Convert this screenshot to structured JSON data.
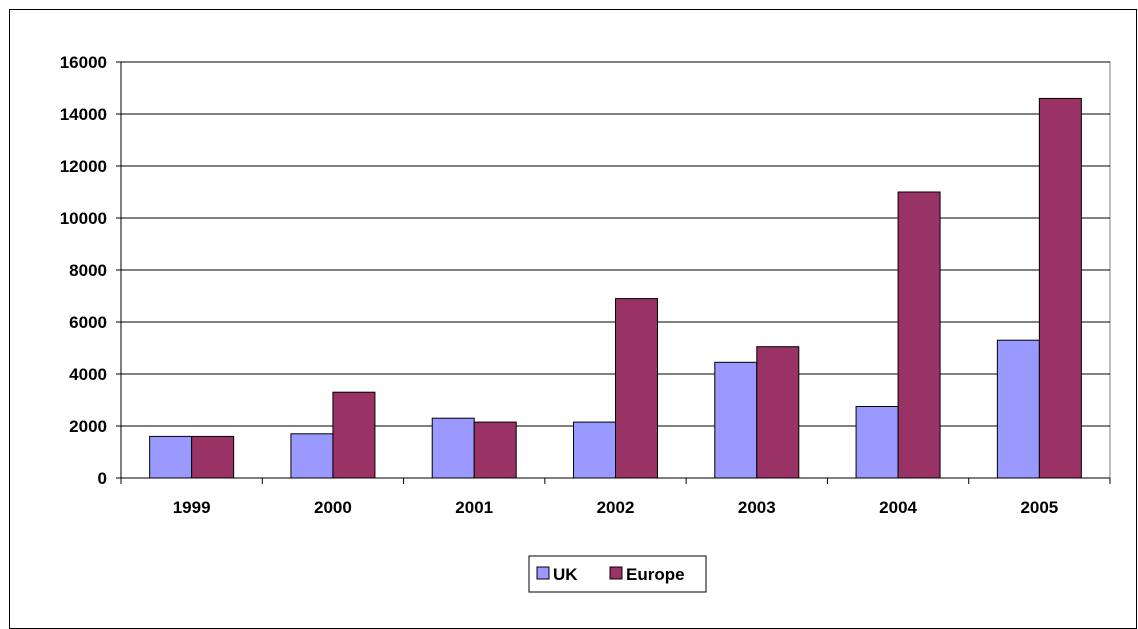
{
  "chart_data": {
    "type": "bar",
    "title": "",
    "xlabel": "",
    "ylabel": "",
    "categories": [
      "1999",
      "2000",
      "2001",
      "2002",
      "2003",
      "2004",
      "2005"
    ],
    "series": [
      {
        "name": "UK",
        "color": "#9999ff",
        "values": [
          1600,
          1700,
          2300,
          2150,
          4450,
          2750,
          5300
        ]
      },
      {
        "name": "Europe",
        "color": "#993366",
        "values": [
          1600,
          3300,
          2150,
          6900,
          5050,
          11000,
          14600
        ]
      }
    ],
    "ylim": [
      0,
      16000
    ],
    "yticks": [
      "0",
      "2000",
      "4000",
      "6000",
      "8000",
      "10000",
      "12000",
      "14000",
      "16000"
    ],
    "grid": true,
    "legend_position": "bottom-center"
  }
}
